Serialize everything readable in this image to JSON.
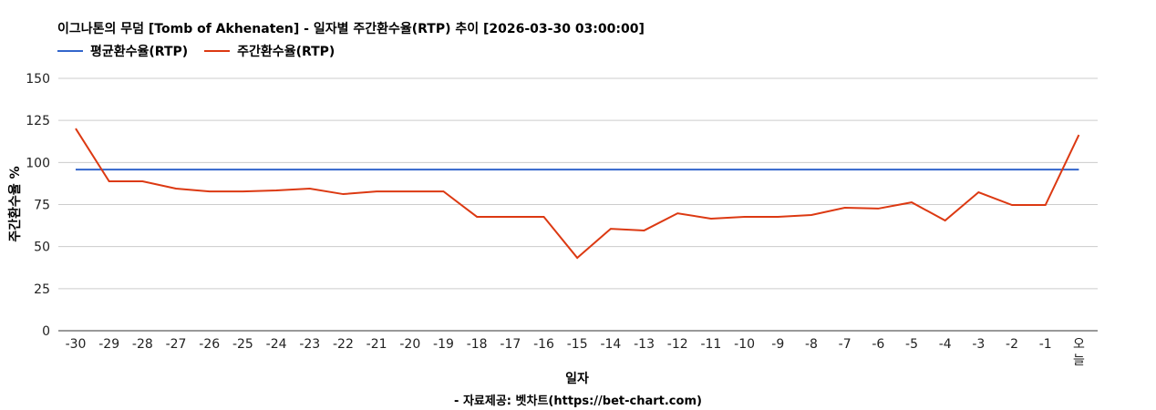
{
  "chart_data": {
    "type": "line",
    "title": "이그나톤의 무덤 [Tomb of Akhenaten] - 일자별 주간환수율(RTP) 추이 [2026-03-30 03:00:00]",
    "xlabel": "일자",
    "ylabel": "주간환수율 %",
    "ylim": [
      0,
      150
    ],
    "yticks": [
      0,
      25,
      50,
      75,
      100,
      125,
      150
    ],
    "grid": true,
    "legend_position": "top-left",
    "categories": [
      "-30",
      "-29",
      "-28",
      "-27",
      "-26",
      "-25",
      "-24",
      "-23",
      "-22",
      "-21",
      "-20",
      "-19",
      "-18",
      "-17",
      "-16",
      "-15",
      "-14",
      "-13",
      "-12",
      "-11",
      "-10",
      "-9",
      "-8",
      "-7",
      "-6",
      "-5",
      "-4",
      "-3",
      "-2",
      "-1",
      "오늘"
    ],
    "series": [
      {
        "name": "평균환수율(RTP)",
        "color": "#3366cc",
        "values": [
          95.8,
          95.8,
          95.8,
          95.8,
          95.8,
          95.8,
          95.8,
          95.8,
          95.8,
          95.8,
          95.8,
          95.8,
          95.8,
          95.8,
          95.8,
          95.8,
          95.8,
          95.8,
          95.8,
          95.8,
          95.8,
          95.8,
          95.8,
          95.8,
          95.8,
          95.8,
          95.8,
          95.8,
          95.8,
          95.8,
          95.8
        ]
      },
      {
        "name": "주간환수율(RTP)",
        "color": "#dc3912",
        "values": [
          120.2,
          88.8,
          88.8,
          84.5,
          82.8,
          82.8,
          83.4,
          84.5,
          81.2,
          82.8,
          82.8,
          82.8,
          67.7,
          67.7,
          67.7,
          43.3,
          60.6,
          59.6,
          69.8,
          66.6,
          67.7,
          67.7,
          68.8,
          73.1,
          72.6,
          76.3,
          65.5,
          82.3,
          74.7,
          74.7,
          116.4
        ]
      }
    ]
  },
  "source": "- 자료제공: 벳차트(https://bet-chart.com)"
}
